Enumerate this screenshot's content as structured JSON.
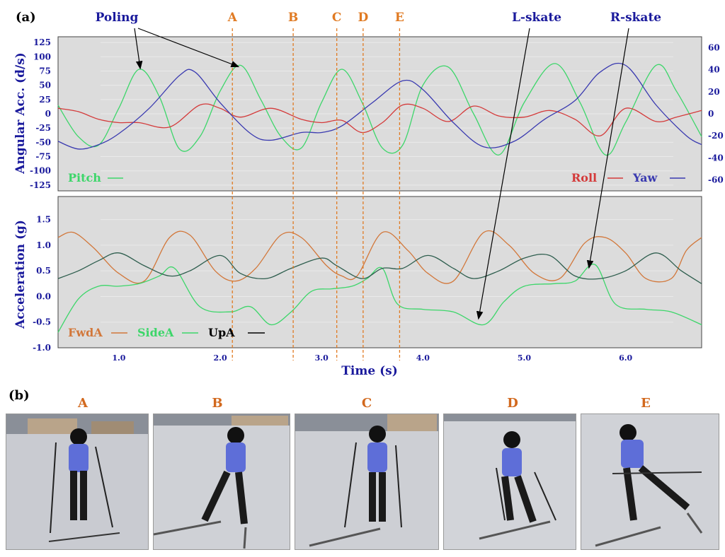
{
  "panel_a_label": "(a)",
  "panel_b_label": "(b)",
  "annotations": {
    "poling": "Poling",
    "l_skate": "L-skate",
    "r_skate": "R-skate"
  },
  "events": [
    {
      "label": "A",
      "time": 2.12
    },
    {
      "label": "B",
      "time": 2.72
    },
    {
      "label": "C",
      "time": 3.15
    },
    {
      "label": "D",
      "time": 3.41
    },
    {
      "label": "E",
      "time": 3.77
    }
  ],
  "x_axis": {
    "label": "Time (s)",
    "ticks": [
      "1.0",
      "2.0",
      "3.0",
      "4.0",
      "5.0",
      "6.0"
    ],
    "tick_values": [
      1.0,
      2.0,
      3.0,
      4.0,
      5.0,
      6.0
    ],
    "range": [
      0.4,
      6.75
    ]
  },
  "chart_data": [
    {
      "type": "line",
      "ylabel": "Angular Acc. (d/s)",
      "y_left_ticks": [
        "125",
        "100",
        "75",
        "50",
        "25",
        "0",
        "-25",
        "-50",
        "-75",
        "-100",
        "-125"
      ],
      "y_left_values": [
        125,
        100,
        75,
        50,
        25,
        0,
        -25,
        -50,
        -75,
        -100,
        -125
      ],
      "ylim_left": [
        -135,
        135
      ],
      "y_right_ticks": [
        "60",
        "40",
        "20",
        "0",
        "-20",
        "-40",
        "-60"
      ],
      "y_right_values": [
        60,
        40,
        20,
        0,
        -20,
        -40,
        -60
      ],
      "ylim_right": [
        -70,
        70
      ],
      "legend": {
        "pitch": "Pitch",
        "roll": "Roll",
        "yaw": "Yaw"
      },
      "series": [
        {
          "name": "Pitch",
          "axis": "left",
          "color": "#3dd66a",
          "x": [
            0.4,
            0.6,
            0.8,
            1.0,
            1.2,
            1.4,
            1.6,
            1.8,
            2.0,
            2.2,
            2.4,
            2.6,
            2.8,
            3.0,
            3.2,
            3.4,
            3.6,
            3.8,
            4.0,
            4.25,
            4.5,
            4.75,
            5.0,
            5.3,
            5.55,
            5.8,
            6.0,
            6.3,
            6.5,
            6.75
          ],
          "values": [
            15,
            -40,
            -55,
            10,
            78,
            30,
            -62,
            -40,
            40,
            85,
            25,
            -40,
            -60,
            20,
            78,
            20,
            -60,
            -55,
            50,
            82,
            0,
            -72,
            20,
            88,
            20,
            -72,
            -15,
            85,
            40,
            -40
          ]
        },
        {
          "name": "Roll",
          "axis": "right",
          "color": "#d43a3a",
          "x": [
            0.4,
            0.6,
            0.8,
            1.0,
            1.2,
            1.5,
            1.8,
            2.0,
            2.2,
            2.5,
            2.8,
            3.0,
            3.2,
            3.4,
            3.6,
            3.8,
            4.0,
            4.25,
            4.5,
            4.75,
            5.0,
            5.25,
            5.5,
            5.75,
            6.0,
            6.3,
            6.5,
            6.75
          ],
          "values": [
            5,
            2,
            -5,
            -8,
            -8,
            -12,
            8,
            5,
            -3,
            5,
            -5,
            -8,
            -6,
            -17,
            -8,
            8,
            5,
            -7,
            7,
            -2,
            -3,
            3,
            -5,
            -20,
            5,
            -7,
            -3,
            3
          ]
        },
        {
          "name": "Yaw",
          "axis": "right",
          "color": "#3a3ab0",
          "x": [
            0.4,
            0.6,
            0.8,
            1.0,
            1.3,
            1.6,
            1.75,
            2.0,
            2.3,
            2.5,
            2.8,
            3.0,
            3.2,
            3.5,
            3.8,
            4.0,
            4.3,
            4.6,
            4.9,
            5.2,
            5.5,
            5.75,
            6.0,
            6.3,
            6.6,
            6.75
          ],
          "values": [
            -25,
            -32,
            -28,
            -18,
            5,
            35,
            38,
            10,
            -18,
            -24,
            -17,
            -17,
            -11,
            10,
            30,
            22,
            -8,
            -30,
            -25,
            -5,
            12,
            38,
            44,
            8,
            -20,
            -28
          ]
        }
      ]
    },
    {
      "type": "line",
      "ylabel": "Acceleration (g)",
      "y_ticks": [
        "1.5",
        "1.0",
        "0.5",
        "0.0",
        "-0.5",
        "-1.0"
      ],
      "y_values": [
        1.5,
        1.0,
        0.5,
        0.0,
        -0.5,
        -1.0
      ],
      "ylim": [
        -1.0,
        1.95
      ],
      "legend": {
        "fwd": "FwdA",
        "side": "SideA",
        "up": "UpA"
      },
      "series": [
        {
          "name": "FwdA",
          "color": "#d2773a",
          "x": [
            0.4,
            0.55,
            0.75,
            1.0,
            1.25,
            1.5,
            1.7,
            1.95,
            2.15,
            2.35,
            2.6,
            2.8,
            3.05,
            3.2,
            3.35,
            3.6,
            3.85,
            4.05,
            4.3,
            4.6,
            4.85,
            5.1,
            5.35,
            5.6,
            5.8,
            6.0,
            6.2,
            6.45,
            6.6,
            6.75
          ],
          "values": [
            1.15,
            1.25,
            0.95,
            0.45,
            0.3,
            1.15,
            1.2,
            0.5,
            0.3,
            0.55,
            1.2,
            1.15,
            0.6,
            0.4,
            0.4,
            1.25,
            0.9,
            0.45,
            0.3,
            1.25,
            1.0,
            0.45,
            0.35,
            1.05,
            1.15,
            0.85,
            0.35,
            0.35,
            0.9,
            1.15
          ]
        },
        {
          "name": "SideA",
          "color": "#3dd66a",
          "x": [
            0.4,
            0.6,
            0.8,
            1.0,
            1.2,
            1.4,
            1.55,
            1.8,
            2.1,
            2.3,
            2.5,
            2.7,
            2.9,
            3.1,
            3.3,
            3.45,
            3.6,
            3.75,
            4.0,
            4.3,
            4.6,
            4.8,
            5.0,
            5.3,
            5.5,
            5.7,
            5.9,
            6.2,
            6.45,
            6.75
          ],
          "values": [
            -0.7,
            -0.05,
            0.2,
            0.2,
            0.25,
            0.4,
            0.55,
            -0.2,
            -0.3,
            -0.2,
            -0.55,
            -0.3,
            0.1,
            0.15,
            0.2,
            0.35,
            0.55,
            -0.15,
            -0.25,
            -0.3,
            -0.55,
            -0.1,
            0.2,
            0.25,
            0.3,
            0.62,
            -0.15,
            -0.25,
            -0.3,
            -0.55
          ]
        },
        {
          "name": "UpA",
          "color": "#2e5e4e",
          "x": [
            0.4,
            0.6,
            0.8,
            1.0,
            1.25,
            1.5,
            1.7,
            2.0,
            2.2,
            2.45,
            2.7,
            3.0,
            3.15,
            3.4,
            3.6,
            3.8,
            4.05,
            4.3,
            4.5,
            4.75,
            5.0,
            5.25,
            5.5,
            5.75,
            6.0,
            6.3,
            6.55,
            6.75
          ],
          "values": [
            0.35,
            0.5,
            0.7,
            0.85,
            0.6,
            0.4,
            0.5,
            0.8,
            0.45,
            0.35,
            0.55,
            0.75,
            0.6,
            0.35,
            0.55,
            0.55,
            0.8,
            0.55,
            0.35,
            0.5,
            0.75,
            0.8,
            0.4,
            0.35,
            0.5,
            0.85,
            0.5,
            0.25
          ]
        }
      ]
    }
  ],
  "photos": [
    {
      "label": "A"
    },
    {
      "label": "B"
    },
    {
      "label": "C"
    },
    {
      "label": "D"
    },
    {
      "label": "E"
    }
  ],
  "colors": {
    "axis_blue": "#1a1a9c",
    "event_orange": "#e07a22",
    "panel_bg": "#dcdcdc",
    "text_black": "#000000"
  }
}
